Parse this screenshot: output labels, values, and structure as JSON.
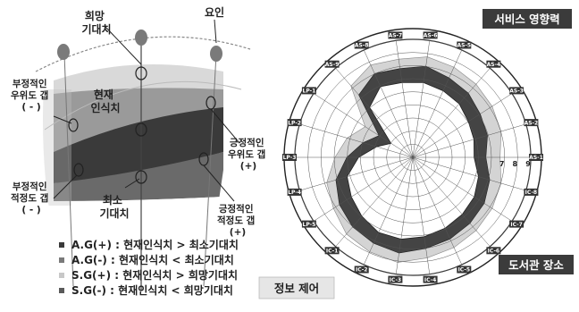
{
  "left": {
    "labels": {
      "hope": "희망\n기대치",
      "factor": "요인",
      "neg_adequacy": "부정적인\n우위도 갭\n( - )",
      "current": "현재\n인식치",
      "pos_adequacy": "긍정적인\n우위도 갭\n(+)",
      "neg_superiority": "부정적인\n적정도 갭\n( - )",
      "minimum": "최소\n기대치",
      "pos_superiority": "긍정적인\n적정도 갭\n(+)"
    },
    "legend": [
      {
        "text": "A.G(+) : 현재인식치 > 최소기대치",
        "color": "#3a3a3a"
      },
      {
        "text": "A.G(-) : 현재인식치 < 최소기대치",
        "color": "#7a7a7a"
      },
      {
        "text": "S.G(+) : 현재인식치 > 희망기대치",
        "color": "#c8c8c8"
      },
      {
        "text": "S.G(-) : 현재인식치 < 희망기대치",
        "color": "#5a5a5a"
      }
    ]
  },
  "right": {
    "label_service": "서비스 영향력",
    "label_library": "도서관 장소",
    "label_info": "정보 제어",
    "axes": [
      "AS-1",
      "AS-2",
      "AS-3",
      "AS-4",
      "AS-5",
      "AS-6",
      "AS-7",
      "AS-8",
      "AS-9",
      "LP-1",
      "LP-2",
      "LP-3",
      "LP-4",
      "LP-5",
      "IC-1",
      "IC-2",
      "IC-3",
      "IC-4",
      "IC-5",
      "IC-6",
      "IC-7",
      "IC-8"
    ],
    "scale_ticks": [
      "7",
      "8",
      "9"
    ]
  }
}
